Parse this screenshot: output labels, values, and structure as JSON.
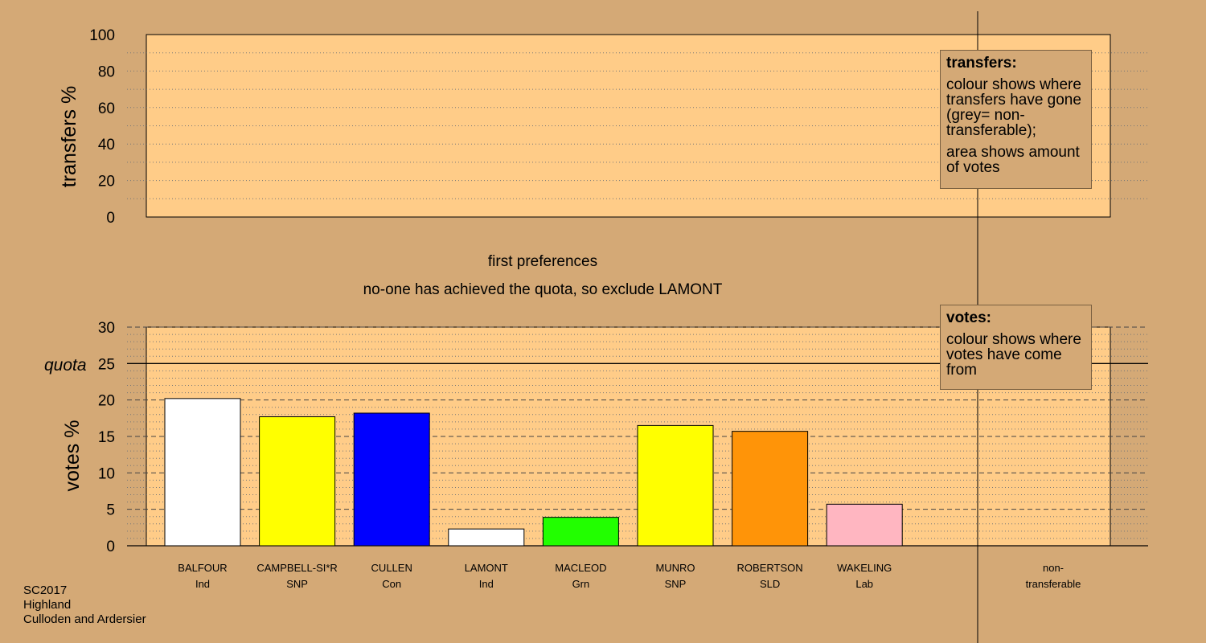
{
  "chart_data": [
    {
      "type": "bar",
      "ylabel": "transfers %",
      "ylim": [
        0,
        100
      ],
      "yticks": [
        0,
        20,
        40,
        60,
        80,
        100
      ],
      "categories": [],
      "values": []
    },
    {
      "type": "bar",
      "ylabel": "votes %",
      "ylim": [
        0,
        30
      ],
      "yticks": [
        0,
        5,
        10,
        15,
        20,
        25,
        30
      ],
      "quota": 25,
      "quota_label": "quota",
      "caption_top": "first preferences",
      "caption_sub": "no-one has achieved the quota, so exclude LAMONT",
      "non_transferable": [
        "non-",
        "transferable"
      ],
      "candidates": [
        {
          "name": "BALFOUR",
          "party": "Ind",
          "value": 20.2,
          "color": "#FFFFFF"
        },
        {
          "name": "CAMPBELL-SI*R",
          "party": "SNP",
          "value": 17.7,
          "color": "#FFFF00"
        },
        {
          "name": "CULLEN",
          "party": "Con",
          "value": 18.2,
          "color": "#0000FF"
        },
        {
          "name": "LAMONT",
          "party": "Ind",
          "value": 2.3,
          "color": "#FFFFFF"
        },
        {
          "name": "MACLEOD",
          "party": "Grn",
          "value": 3.9,
          "color": "#22FF00"
        },
        {
          "name": "MUNRO",
          "party": "SNP",
          "value": 16.5,
          "color": "#FFFF00"
        },
        {
          "name": "ROBERTSON",
          "party": "SLD",
          "value": 15.7,
          "color": "#FF9408"
        },
        {
          "name": "WAKELING",
          "party": "Lab",
          "value": 5.7,
          "color": "#FFB6C1"
        }
      ]
    }
  ],
  "legend_transfers": {
    "title": "transfers:",
    "line1": "colour shows where transfers have gone (grey= non-transferable);",
    "line2": "area shows amount of votes"
  },
  "legend_votes": {
    "title": "votes:",
    "line1": "colour shows where votes have come from"
  },
  "footer": {
    "election": "SC2017",
    "council": "Highland",
    "ward": "Culloden and Ardersier"
  }
}
